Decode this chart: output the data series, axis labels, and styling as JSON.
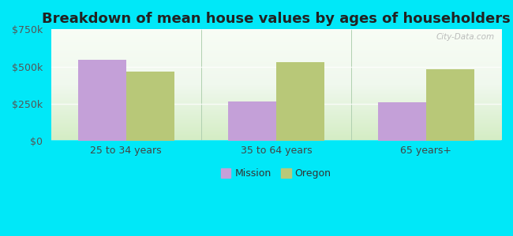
{
  "title": "Breakdown of mean house values by ages of householders",
  "categories": [
    "25 to 34 years",
    "35 to 64 years",
    "65 years+"
  ],
  "series": {
    "Mission": [
      545000,
      265000,
      260000
    ],
    "Oregon": [
      465000,
      530000,
      485000
    ]
  },
  "bar_colors": {
    "Mission": "#c4a0d8",
    "Oregon": "#b8c878"
  },
  "ylim": [
    0,
    750000
  ],
  "yticks": [
    0,
    250000,
    500000,
    750000
  ],
  "ytick_labels": [
    "$0",
    "$250k",
    "$500k",
    "$750k"
  ],
  "background_outer": "#00e8f8",
  "title_fontsize": 13,
  "axis_fontsize": 9,
  "legend_fontsize": 9,
  "bar_width": 0.32,
  "watermark": "City-Data.com"
}
